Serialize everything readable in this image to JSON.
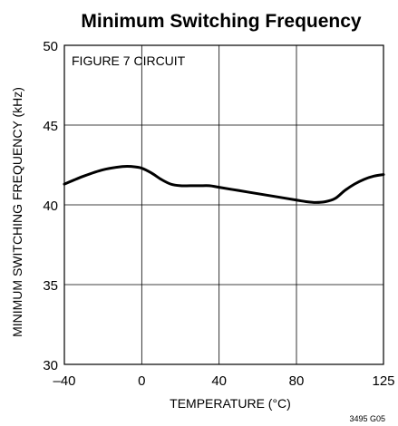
{
  "chart_data": {
    "type": "line",
    "title": "Minimum Switching Frequency",
    "xlabel": "TEMPERATURE (°C)",
    "ylabel": "MINIMUM SWITCHING FREQUENCY (kHz)",
    "xlim": [
      -40,
      125
    ],
    "ylim": [
      30,
      50
    ],
    "xticks": [
      -40,
      0,
      40,
      80,
      125
    ],
    "xtick_labels": [
      "–40",
      "0",
      "40",
      "80",
      "125"
    ],
    "yticks": [
      30,
      35,
      40,
      45,
      50
    ],
    "ytick_labels": [
      "30",
      "35",
      "40",
      "45",
      "50"
    ],
    "grid": true,
    "annotation": "FIGURE 7 CIRCUIT",
    "series": [
      {
        "x": [
          -40,
          -30,
          -20,
          -10,
          -5,
          0,
          5,
          10,
          15,
          20,
          25,
          30,
          35,
          40,
          50,
          60,
          70,
          80,
          85,
          90,
          95,
          100,
          105,
          110,
          115,
          120,
          125
        ],
        "y": [
          41.3,
          41.8,
          42.2,
          42.4,
          42.4,
          42.3,
          42.0,
          41.6,
          41.3,
          41.2,
          41.2,
          41.2,
          41.2,
          41.1,
          40.9,
          40.7,
          40.5,
          40.3,
          40.2,
          40.15,
          40.2,
          40.4,
          40.9,
          41.3,
          41.6,
          41.8,
          41.9
        ]
      }
    ],
    "color": "#000000"
  },
  "figure_id": "3495 G05"
}
